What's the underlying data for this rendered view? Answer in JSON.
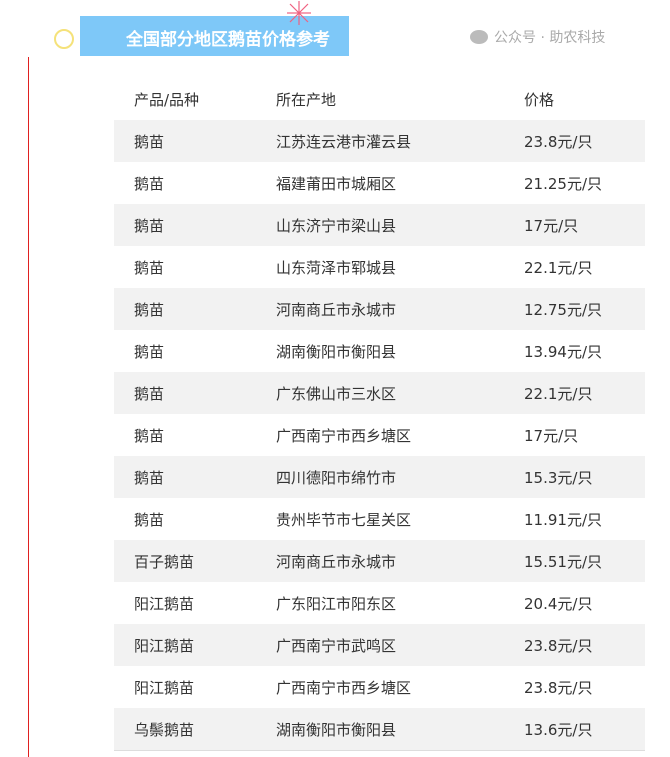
{
  "title": "全国部分地区鹅苗价格参考",
  "headers": [
    "产品/品种",
    "所在产地",
    "价格"
  ],
  "rows": [
    [
      "鹅苗",
      "江苏连云港市灌云县",
      "23.8元/只"
    ],
    [
      "鹅苗",
      "福建莆田市城厢区",
      "21.25元/只"
    ],
    [
      "鹅苗",
      "山东济宁市梁山县",
      "17元/只"
    ],
    [
      "鹅苗",
      "山东菏泽市郓城县",
      "22.1元/只"
    ],
    [
      "鹅苗",
      "河南商丘市永城市",
      "12.75元/只"
    ],
    [
      "鹅苗",
      "湖南衡阳市衡阳县",
      "13.94元/只"
    ],
    [
      "鹅苗",
      "广东佛山市三水区",
      "22.1元/只"
    ],
    [
      "鹅苗",
      "广西南宁市西乡塘区",
      "17元/只"
    ],
    [
      "鹅苗",
      "四川德阳市绵竹市",
      "15.3元/只"
    ],
    [
      "鹅苗",
      "贵州毕节市七星关区",
      "11.91元/只"
    ],
    [
      "百子鹅苗",
      "河南商丘市永城市",
      "15.51元/只"
    ],
    [
      "阳江鹅苗",
      "广东阳江市阳东区",
      "20.4元/只"
    ],
    [
      "阳江鹅苗",
      "广西南宁市武鸣区",
      "23.8元/只"
    ],
    [
      "阳江鹅苗",
      "广西南宁市西乡塘区",
      "23.8元/只"
    ],
    [
      "乌鬃鹅苗",
      "湖南衡阳市衡阳县",
      "13.6元/只"
    ]
  ],
  "watermark": "公众号 · 助农科技",
  "colors": {
    "banner": "#7ec8f8",
    "accent_line": "#e02020",
    "row_alt": "#f2f2f2"
  }
}
